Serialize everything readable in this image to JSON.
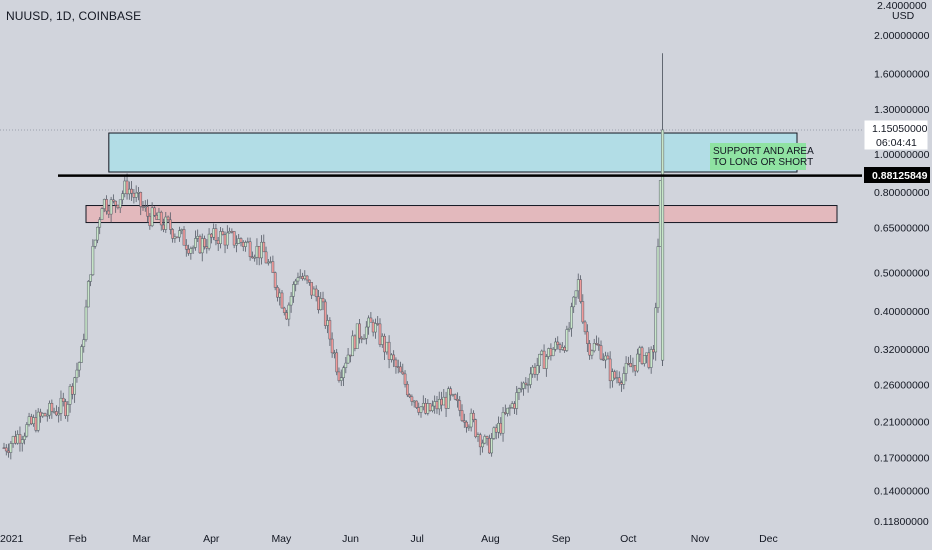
{
  "header": {
    "symbol_title": "NUUSD, 1D, COINBASE"
  },
  "price_axis": {
    "currency": "USD",
    "top_tick": "2.4000000",
    "ticks": [
      "2.00000000",
      "1.60000000",
      "1.30000000",
      "1.00000000",
      "0.80000000",
      "0.65000000",
      "0.50000000",
      "0.40000000",
      "0.32000000",
      "0.26000000",
      "0.21000000",
      "0.17000000",
      "0.14000000"
    ],
    "bottom_tick": "0.11800000",
    "current_price_label": "1.15050000",
    "countdown_label": "06:04:41",
    "level_label": "0.88125849"
  },
  "time_axis": {
    "labels": [
      "2021",
      "Feb",
      "Mar",
      "Apr",
      "May",
      "Jun",
      "Jul",
      "Aug",
      "Sep",
      "Oct",
      "Nov",
      "Dec"
    ]
  },
  "annotations": {
    "note_line1": "SUPPORT AND AREA",
    "note_line2": "TO LONG OR SHORT",
    "support_zone_color": "#b2dde6",
    "resistance_zone_color": "#e3b9bd",
    "note_bg_color": "#8fe3a2",
    "level_line_color": "#000000"
  },
  "colors": {
    "up": "#c8e6c9",
    "down": "#ef9a9a",
    "background": "#d1d4dc"
  },
  "chart_data": {
    "type": "candlestick",
    "title": "NUUSD, 1D, COINBASE",
    "scale": "log",
    "ylim": [
      0.118,
      2.4
    ],
    "x_range": [
      "2021-01-01",
      "2021-12-15"
    ],
    "horizontal_level": 0.88125849,
    "zones": [
      {
        "name": "support zone",
        "from": "2021-02-16",
        "to": "2021-12-15",
        "low": 0.9,
        "high": 1.13
      },
      {
        "name": "resistance zone",
        "from": "2021-02-07",
        "to": "2021-12-31",
        "low": 0.67,
        "high": 0.74
      }
    ],
    "close_trajectory": [
      [
        "2021-01-01",
        0.18
      ],
      [
        "2021-01-10",
        0.2
      ],
      [
        "2021-01-20",
        0.22
      ],
      [
        "2021-01-28",
        0.23
      ],
      [
        "2021-02-04",
        0.31
      ],
      [
        "2021-02-08",
        0.52
      ],
      [
        "2021-02-13",
        0.76
      ],
      [
        "2021-02-18",
        0.74
      ],
      [
        "2021-02-24",
        0.83
      ],
      [
        "2021-03-05",
        0.7
      ],
      [
        "2021-03-15",
        0.65
      ],
      [
        "2021-03-25",
        0.58
      ],
      [
        "2021-04-05",
        0.62
      ],
      [
        "2021-04-15",
        0.6
      ],
      [
        "2021-04-25",
        0.56
      ],
      [
        "2021-05-05",
        0.4
      ],
      [
        "2021-05-10",
        0.5
      ],
      [
        "2021-05-20",
        0.42
      ],
      [
        "2021-05-28",
        0.28
      ],
      [
        "2021-06-05",
        0.35
      ],
      [
        "2021-06-12",
        0.37
      ],
      [
        "2021-06-20",
        0.3
      ],
      [
        "2021-06-28",
        0.25
      ],
      [
        "2021-07-05",
        0.22
      ],
      [
        "2021-07-15",
        0.24
      ],
      [
        "2021-07-25",
        0.21
      ],
      [
        "2021-08-01",
        0.18
      ],
      [
        "2021-08-10",
        0.22
      ],
      [
        "2021-08-20",
        0.28
      ],
      [
        "2021-08-30",
        0.32
      ],
      [
        "2021-09-05",
        0.34
      ],
      [
        "2021-09-10",
        0.47
      ],
      [
        "2021-09-14",
        0.33
      ],
      [
        "2021-09-20",
        0.32
      ],
      [
        "2021-09-25",
        0.27
      ],
      [
        "2021-10-01",
        0.28
      ],
      [
        "2021-10-08",
        0.31
      ],
      [
        "2021-10-13",
        0.3
      ],
      [
        "2021-10-17",
        1.1505
      ]
    ]
  }
}
